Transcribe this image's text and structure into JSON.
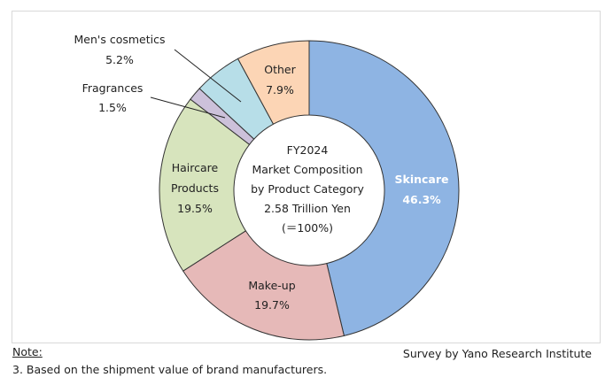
{
  "chart_data": {
    "type": "pie",
    "donut": true,
    "center_text": [
      "FY2024",
      "Market Composition",
      "by Product Category",
      "2.58 Trillion Yen",
      "(＝100%)"
    ],
    "slices": [
      {
        "name": "Skincare",
        "value": 46.3,
        "label": "46.3%",
        "color": "#8EB4E3"
      },
      {
        "name": "Make-up",
        "value": 19.7,
        "label": "19.7%",
        "color": "#E6B9B8"
      },
      {
        "name": "Haircare Products",
        "value": 19.5,
        "label": "19.5%",
        "color": "#D7E4BD"
      },
      {
        "name": "Fragrances",
        "value": 1.5,
        "label": "1.5%",
        "color": "#CCC1DA"
      },
      {
        "name": "Men's cosmetics",
        "value": 5.2,
        "label": "5.2%",
        "color": "#B7DEE8"
      },
      {
        "name": "Other",
        "value": 7.9,
        "label": "7.9%",
        "color": "#FCD5B5"
      }
    ],
    "start": "top",
    "direction": "clockwise"
  },
  "footer": {
    "note_heading": "Note:",
    "note_text": "3. Based on the shipment value of brand manufacturers.",
    "source": "Survey by Yano Research Institute"
  }
}
